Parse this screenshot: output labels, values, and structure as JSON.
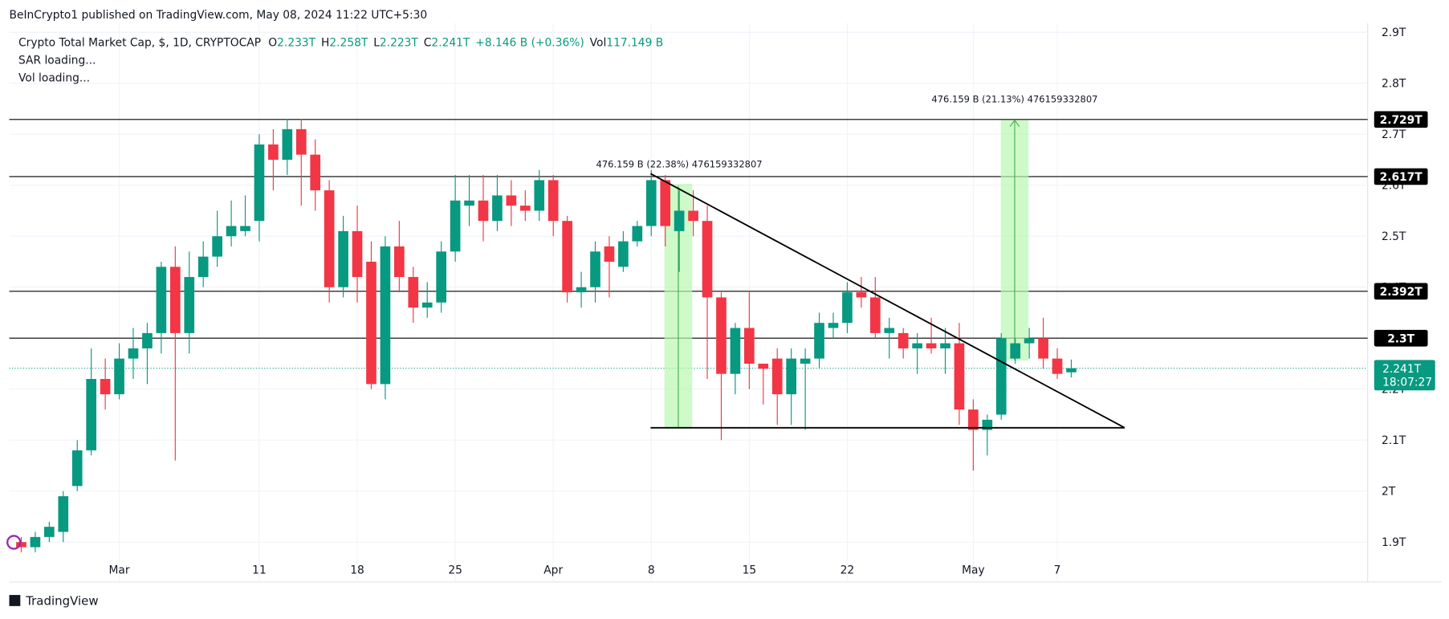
{
  "header": {
    "publisher": "BeInCrypto1 published on TradingView.com, May 08, 2024 11:22 UTC+5:30",
    "symbol": "Crypto Total Market Cap, $, 1D, CRYPTOCAP",
    "ohlc": [
      {
        "key": "O",
        "value": "2.233T"
      },
      {
        "key": "H",
        "value": "2.258T"
      },
      {
        "key": "L",
        "value": "2.223T"
      },
      {
        "key": "C",
        "value": "2.241T"
      }
    ],
    "change": "+8.146 B (+0.36%)",
    "vol_key": "Vol",
    "vol": "117.149 B",
    "indicators": [
      "SAR loading...",
      "Vol loading..."
    ]
  },
  "footer": {
    "brand": "TradingView"
  },
  "chart_data": {
    "type": "candlestick",
    "up_color": "#089981",
    "down_color": "#f23645",
    "categories": [
      null,
      null,
      null,
      null,
      null,
      null,
      null,
      "Mar",
      null,
      null,
      null,
      null,
      null,
      null,
      null,
      null,
      null,
      "11",
      null,
      null,
      null,
      null,
      null,
      null,
      "18",
      null,
      null,
      null,
      null,
      null,
      null,
      "25",
      null,
      null,
      null,
      null,
      null,
      null,
      "Apr",
      null,
      null,
      null,
      null,
      null,
      null,
      "8",
      null,
      null,
      null,
      null,
      null,
      null,
      "15",
      null,
      null,
      null,
      null,
      null,
      null,
      "22",
      null,
      null,
      null,
      null,
      null,
      null,
      null,
      null,
      "May",
      null,
      null,
      null,
      null,
      null,
      "7",
      null
    ],
    "open": [
      1.9,
      1.89,
      1.91,
      1.92,
      2.01,
      2.08,
      2.22,
      2.19,
      2.26,
      2.28,
      2.31,
      2.44,
      2.31,
      2.42,
      2.46,
      2.5,
      2.51,
      2.53,
      2.68,
      2.65,
      2.71,
      2.66,
      2.59,
      2.4,
      2.51,
      2.45,
      2.21,
      2.48,
      2.42,
      2.36,
      2.37,
      2.47,
      2.56,
      2.57,
      2.53,
      2.58,
      2.56,
      2.55,
      2.61,
      2.53,
      2.39,
      2.4,
      2.48,
      2.44,
      2.49,
      2.52,
      2.61,
      2.51,
      2.55,
      2.53,
      2.38,
      2.23,
      2.32,
      2.25,
      2.26,
      2.19,
      2.25,
      2.26,
      2.32,
      2.33,
      2.39,
      2.38,
      2.31,
      2.31,
      2.28,
      2.29,
      2.28,
      2.29,
      2.16,
      2.12,
      2.15,
      2.26,
      2.29,
      2.3,
      2.26,
      2.233
    ],
    "high": [
      1.91,
      1.92,
      1.94,
      2.0,
      2.1,
      2.28,
      2.26,
      2.29,
      2.32,
      2.33,
      2.45,
      2.48,
      2.47,
      2.49,
      2.55,
      2.57,
      2.58,
      2.7,
      2.71,
      2.73,
      2.73,
      2.69,
      2.61,
      2.54,
      2.56,
      2.49,
      2.5,
      2.53,
      2.44,
      2.41,
      2.49,
      2.62,
      2.62,
      2.62,
      2.62,
      2.61,
      2.59,
      2.63,
      2.62,
      2.54,
      2.43,
      2.49,
      2.5,
      2.51,
      2.53,
      2.63,
      2.62,
      2.59,
      2.59,
      2.56,
      2.39,
      2.33,
      2.39,
      2.25,
      2.28,
      2.28,
      2.28,
      2.35,
      2.35,
      2.41,
      2.42,
      2.42,
      2.34,
      2.32,
      2.31,
      2.34,
      2.32,
      2.33,
      2.18,
      2.15,
      2.31,
      2.3,
      2.32,
      2.34,
      2.28,
      2.258
    ],
    "low": [
      1.88,
      1.88,
      1.9,
      1.9,
      2.0,
      2.07,
      2.16,
      2.18,
      2.22,
      2.21,
      2.27,
      2.06,
      2.27,
      2.4,
      2.44,
      2.48,
      2.5,
      2.49,
      2.59,
      2.62,
      2.56,
      2.55,
      2.37,
      2.38,
      2.37,
      2.2,
      2.18,
      2.39,
      2.33,
      2.34,
      2.35,
      2.45,
      2.52,
      2.49,
      2.51,
      2.52,
      2.53,
      2.53,
      2.5,
      2.37,
      2.36,
      2.37,
      2.38,
      2.43,
      2.48,
      2.5,
      2.48,
      2.43,
      2.5,
      2.22,
      2.1,
      2.19,
      2.2,
      2.17,
      2.13,
      2.13,
      2.12,
      2.24,
      2.3,
      2.31,
      2.36,
      2.3,
      2.26,
      2.26,
      2.23,
      2.27,
      2.23,
      2.13,
      2.04,
      2.07,
      2.14,
      2.25,
      2.26,
      2.24,
      2.22,
      2.223
    ],
    "close": [
      1.89,
      1.91,
      1.93,
      1.99,
      2.08,
      2.22,
      2.19,
      2.26,
      2.28,
      2.31,
      2.44,
      2.31,
      2.42,
      2.46,
      2.5,
      2.52,
      2.52,
      2.68,
      2.65,
      2.71,
      2.66,
      2.59,
      2.4,
      2.51,
      2.42,
      2.21,
      2.48,
      2.42,
      2.36,
      2.37,
      2.47,
      2.57,
      2.57,
      2.53,
      2.58,
      2.56,
      2.55,
      2.61,
      2.53,
      2.39,
      2.4,
      2.47,
      2.45,
      2.49,
      2.52,
      2.61,
      2.52,
      2.55,
      2.53,
      2.38,
      2.23,
      2.32,
      2.25,
      2.24,
      2.19,
      2.26,
      2.26,
      2.33,
      2.33,
      2.39,
      2.38,
      2.31,
      2.32,
      2.28,
      2.29,
      2.28,
      2.29,
      2.16,
      2.12,
      2.14,
      2.3,
      2.29,
      2.3,
      2.26,
      2.23,
      2.241
    ],
    "ylim": [
      1.876,
      2.909
    ],
    "yticks": [
      {
        "value": 1.9,
        "label": "1.9T"
      },
      {
        "value": 2.0,
        "label": "2T"
      },
      {
        "value": 2.1,
        "label": "2.1T"
      },
      {
        "value": 2.2,
        "label": "2.2T"
      },
      {
        "value": 2.3,
        "label": "2.3T"
      },
      {
        "value": 2.4,
        "label": "2.4T"
      },
      {
        "value": 2.5,
        "label": "2.5T"
      },
      {
        "value": 2.6,
        "label": "2.6T"
      },
      {
        "value": 2.7,
        "label": "2.7T"
      },
      {
        "value": 2.8,
        "label": "2.8T"
      },
      {
        "value": 2.9,
        "label": "2.9T"
      }
    ],
    "grid": true,
    "levels": [
      {
        "value": 2.729,
        "label": "2.729T"
      },
      {
        "value": 2.617,
        "label": "2.617T"
      },
      {
        "value": 2.392,
        "label": "2.392T"
      },
      {
        "value": 2.3,
        "label": "2.3T"
      }
    ],
    "last_price": {
      "value": 2.241,
      "label": "2.241T",
      "countdown": "18:07:27"
    },
    "annotations": [
      "476.159 B (22.38%) 476159332807",
      "476.159 B (21.13%) 476159332807"
    ]
  }
}
